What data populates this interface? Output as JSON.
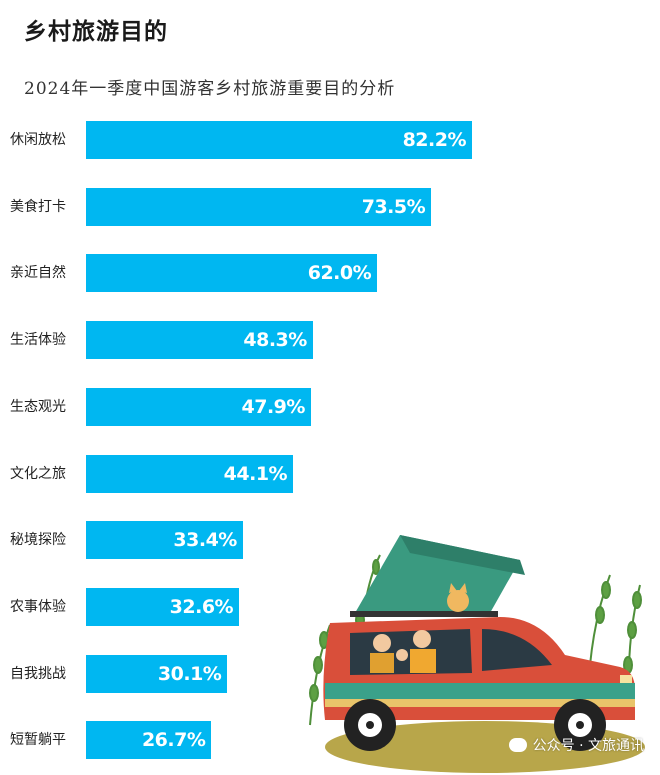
{
  "header": {
    "title": "乡村旅游目的",
    "subtitle": "2024年一季度中国游客乡村旅游重要目的分析"
  },
  "chart_data": {
    "type": "bar",
    "orientation": "horizontal",
    "categories": [
      "休闲放松",
      "美食打卡",
      "亲近自然",
      "生活体验",
      "生态观光",
      "文化之旅",
      "秘境探险",
      "农事体验",
      "自我挑战",
      "短暂躺平"
    ],
    "values": [
      82.2,
      73.5,
      62.0,
      48.3,
      47.9,
      44.1,
      33.4,
      32.6,
      30.1,
      26.7
    ],
    "value_labels": [
      "82.2%",
      "73.5%",
      "62.0%",
      "48.3%",
      "47.9%",
      "44.1%",
      "33.4%",
      "32.6%",
      "30.1%",
      "26.7%"
    ],
    "title": "乡村旅游目的",
    "subtitle": "2024年一季度中国游客乡村旅游重要目的分析",
    "xlabel": "",
    "ylabel": "",
    "xlim": [
      0,
      100
    ],
    "grid": false,
    "bar_color": "#00b7f1"
  },
  "watermark": {
    "text": "公众号 · 文旅通讯"
  },
  "colors": {
    "bar": "#00b7f1",
    "car_body": "#d94f3a",
    "tent": "#3a9a80",
    "plant": "#4f8f3a"
  }
}
